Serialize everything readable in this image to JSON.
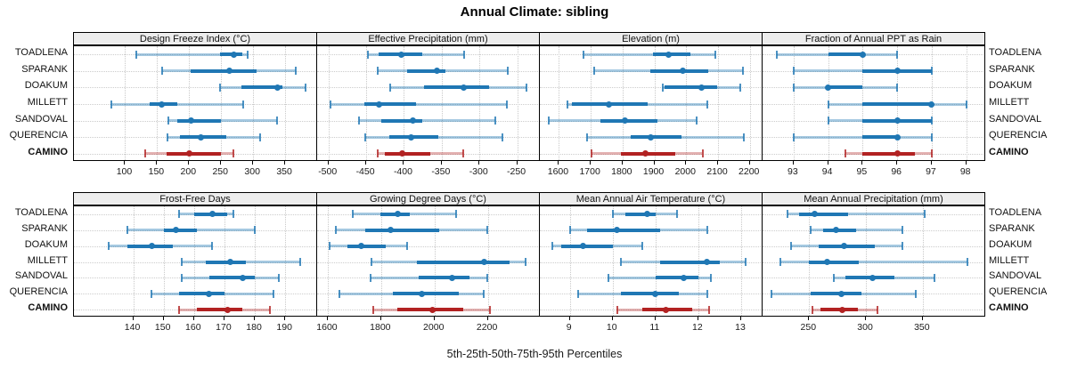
{
  "title": "Annual Climate: sibling",
  "caption": "5th-25th-50th-75th-95th Percentiles",
  "series": [
    "TOADLENA",
    "SPARANK",
    "DOAKUM",
    "MILLETT",
    "SANDOVAL",
    "QUERENCIA",
    "CAMINO"
  ],
  "highlight_series": "CAMINO",
  "colors": {
    "blue": "#1f77b4",
    "blue_light": "rgba(31,119,180,0.40)",
    "red": "#b22222",
    "red_light": "rgba(178,34,34,0.35)",
    "grid": "#c9c9c9",
    "strip_bg": "#ededed",
    "border": "#000000"
  },
  "chart_data": {
    "type": "dotplot-percentile-panels",
    "percentile_labels": [
      "5th",
      "25th",
      "50th",
      "75th",
      "95th"
    ],
    "grid": "dotted",
    "panels": [
      {
        "row": 0,
        "col": 0,
        "title": "Design Freeze Index (°C)",
        "xlim": [
          20,
          400
        ],
        "ticks": [
          100,
          150,
          200,
          250,
          300,
          350
        ],
        "values": {
          "TOADLENA": [
            118,
            248,
            270,
            283,
            292
          ],
          "SPARANK": [
            158,
            203,
            263,
            305,
            367
          ],
          "DOAKUM": [
            248,
            281,
            338,
            346,
            382
          ],
          "MILLETT": [
            78,
            138,
            157,
            182,
            284
          ],
          "SANDOVAL": [
            167,
            182,
            203,
            249,
            337
          ],
          "QUERENCIA": [
            166,
            186,
            219,
            258,
            311
          ],
          "CAMINO": [
            131,
            165,
            200,
            249,
            269
          ]
        }
      },
      {
        "row": 0,
        "col": 1,
        "title": "Effective Precipitation (mm)",
        "xlim": [
          -515,
          -220
        ],
        "ticks": [
          -500,
          -450,
          -400,
          -350,
          -300,
          -250
        ],
        "values": {
          "TOADLENA": [
            -448,
            -434,
            -404,
            -376,
            -320
          ],
          "SPARANK": [
            -435,
            -396,
            -356,
            -345,
            -263
          ],
          "DOAKUM": [
            -418,
            -373,
            -321,
            -287,
            -238
          ],
          "MILLETT": [
            -497,
            -453,
            -433,
            -384,
            -264
          ],
          "SANDOVAL": [
            -459,
            -430,
            -388,
            -376,
            -279
          ],
          "QUERENCIA": [
            -451,
            -420,
            -390,
            -355,
            -270
          ],
          "CAMINO": [
            -435,
            -425,
            -402,
            -365,
            -321
          ]
        }
      },
      {
        "row": 0,
        "col": 2,
        "title": "Elevation (m)",
        "xlim": [
          1540,
          2240
        ],
        "ticks": [
          1600,
          1700,
          1800,
          1900,
          2000,
          2100,
          2200
        ],
        "values": {
          "TOADLENA": [
            1677,
            1895,
            1945,
            2012,
            2092
          ],
          "SPARANK": [
            1712,
            1887,
            1990,
            2069,
            2179
          ],
          "DOAKUM": [
            1926,
            1932,
            2047,
            2096,
            2169
          ],
          "MILLETT": [
            1626,
            1642,
            1757,
            1880,
            2066
          ],
          "SANDOVAL": [
            1567,
            1731,
            1808,
            1909,
            2034
          ],
          "QUERENCIA": [
            1689,
            1825,
            1888,
            1984,
            2181
          ],
          "CAMINO": [
            1703,
            1795,
            1872,
            1965,
            2051
          ]
        }
      },
      {
        "row": 0,
        "col": 3,
        "title": "Fraction of Annual PPT as Rain",
        "xlim": [
          92.1,
          98.55
        ],
        "ticks": [
          93,
          94,
          95,
          96,
          97,
          98
        ],
        "values": {
          "TOADLENA": [
            92.5,
            94,
            95,
            95,
            96
          ],
          "SPARANK": [
            93,
            95,
            96,
            97,
            97
          ],
          "DOAKUM": [
            93,
            94,
            94,
            95,
            96
          ],
          "MILLETT": [
            94,
            95,
            97,
            97,
            98
          ],
          "SANDOVAL": [
            94,
            95,
            96,
            97,
            97
          ],
          "QUERENCIA": [
            93,
            95,
            96,
            96,
            97
          ],
          "CAMINO": [
            94.5,
            95,
            96,
            96.5,
            97
          ]
        }
      },
      {
        "row": 1,
        "col": 0,
        "title": "Frost-Free Days",
        "xlim": [
          120.5,
          200.5
        ],
        "ticks": [
          140,
          150,
          160,
          170,
          180,
          190
        ],
        "values": {
          "TOADLENA": [
            155,
            160,
            166,
            171,
            173
          ],
          "SPARANK": [
            138,
            150,
            154,
            161,
            180
          ],
          "DOAKUM": [
            132,
            138,
            146,
            153,
            166
          ],
          "MILLETT": [
            156,
            164,
            172,
            177,
            195
          ],
          "SANDOVAL": [
            156,
            165,
            176,
            180,
            188
          ],
          "QUERENCIA": [
            146,
            155,
            165,
            170,
            186
          ],
          "CAMINO": [
            155,
            161,
            171,
            176,
            185
          ]
        }
      },
      {
        "row": 1,
        "col": 1,
        "title": "Growing Degree Days (°C)",
        "xlim": [
          1560,
          2395
        ],
        "ticks": [
          1600,
          1800,
          2000,
          2200
        ],
        "values": {
          "TOADLENA": [
            1695,
            1798,
            1862,
            1907,
            2080
          ],
          "SPARANK": [
            1631,
            1739,
            1835,
            2017,
            2198
          ],
          "DOAKUM": [
            1608,
            1672,
            1726,
            1818,
            1898
          ],
          "MILLETT": [
            1765,
            1935,
            2185,
            2280,
            2340
          ],
          "SANDOVAL": [
            1760,
            1941,
            2066,
            2131,
            2198
          ],
          "QUERENCIA": [
            1645,
            1843,
            1952,
            2091,
            2184
          ],
          "CAMINO": [
            1771,
            1860,
            1991,
            2108,
            2207
          ]
        }
      },
      {
        "row": 1,
        "col": 2,
        "title": "Mean Annual Air Temperature (°C)",
        "xlim": [
          8.3,
          13.5
        ],
        "ticks": [
          9,
          10,
          11,
          12,
          13
        ],
        "values": {
          "TOADLENA": [
            10.0,
            10.3,
            10.8,
            11.0,
            11.5
          ],
          "SPARANK": [
            9.0,
            9.4,
            10.1,
            11.1,
            12.2
          ],
          "DOAKUM": [
            8.6,
            8.8,
            9.3,
            10.0,
            10.7
          ],
          "MILLETT": [
            10.2,
            11.1,
            12.2,
            12.5,
            13.1
          ],
          "SANDOVAL": [
            9.9,
            11.0,
            11.65,
            12.0,
            12.3
          ],
          "QUERENCIA": [
            9.2,
            10.2,
            11.0,
            11.55,
            12.2
          ],
          "CAMINO": [
            10.1,
            10.7,
            11.25,
            11.85,
            12.25
          ]
        }
      },
      {
        "row": 1,
        "col": 3,
        "title": "Mean Annual Precipitation (mm)",
        "xlim": [
          209,
          405
        ],
        "ticks": [
          250,
          300,
          350
        ],
        "values": {
          "TOADLENA": [
            231,
            241,
            255,
            284,
            352
          ],
          "SPARANK": [
            251,
            262,
            274,
            291,
            332
          ],
          "DOAKUM": [
            234,
            258,
            281,
            308,
            332
          ],
          "MILLETT": [
            225,
            250,
            266,
            294,
            389
          ],
          "SANDOVAL": [
            272,
            282,
            306,
            325,
            360
          ],
          "QUERENCIA": [
            217,
            251,
            278,
            296,
            344
          ],
          "CAMINO": [
            253,
            260,
            279,
            293,
            310
          ]
        }
      }
    ]
  }
}
